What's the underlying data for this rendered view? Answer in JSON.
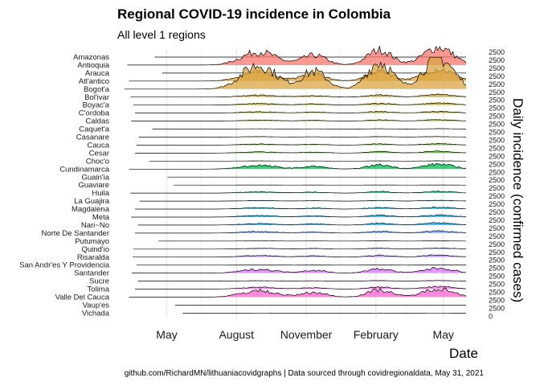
{
  "chart_data": {
    "type": "area",
    "subtype": "ridgeline",
    "title": "Regional COVID-19 incidence in Colombia",
    "subtitle": "All level 1 regions",
    "xlabel": "Date",
    "ylabel": "Daily incidence (confirmed cases)",
    "caption": "github.com/RichardMN/lithuaniacovidgraphs | Data sourced through covidregionaldata, May 31, 2021",
    "x_ticks": [
      "May",
      "August",
      "November",
      "February",
      "May"
    ],
    "x_range": [
      "2020-03-01",
      "2021-05-31"
    ],
    "y_ticks_per_row": [
      "2500",
      "0"
    ],
    "y_range_per_row": [
      0,
      2500
    ],
    "grid": true,
    "legend": "none",
    "colors": {
      "low": "#f8766d",
      "mid_warm": "#d89000",
      "mid": "#39b600",
      "cool": "#00b0f6",
      "high": "#e76bf3",
      "line": "#000000",
      "grid": "#ebebeb"
    },
    "series": [
      {
        "name": "Amazonas",
        "start": "2020-04-15",
        "peak": 10,
        "color": "#f8766d"
      },
      {
        "name": "Antioquia",
        "start": "2020-03-10",
        "peak": 2500,
        "color": "#f8766d"
      },
      {
        "name": "Arauca",
        "start": "2020-04-25",
        "peak": 25,
        "color": "#f28e2b"
      },
      {
        "name": "Atl'antico",
        "start": "2020-03-12",
        "peak": 1700,
        "color": "#e6a33a"
      },
      {
        "name": "Bogot'a",
        "start": "2020-03-06",
        "peak": 4500,
        "color": "#d9a441"
      },
      {
        "name": "Bol'ivar",
        "start": "2020-03-14",
        "peak": 350,
        "color": "#c8a32a"
      },
      {
        "name": "Boyac'a",
        "start": "2020-03-18",
        "peak": 300,
        "color": "#b5a800"
      },
      {
        "name": "C'ordoba",
        "start": "2020-03-20",
        "peak": 250,
        "color": "#a3a500"
      },
      {
        "name": "Caldas",
        "start": "2020-03-15",
        "peak": 200,
        "color": "#8fac00"
      },
      {
        "name": "Caquet'a",
        "start": "2020-04-12",
        "peak": 60,
        "color": "#7cae00"
      },
      {
        "name": "Casanare",
        "start": "2020-03-25",
        "peak": 80,
        "color": "#64b200"
      },
      {
        "name": "Cauca",
        "start": "2020-03-22",
        "peak": 200,
        "color": "#4cb400"
      },
      {
        "name": "Cesar",
        "start": "2020-03-20",
        "peak": 250,
        "color": "#39b600"
      },
      {
        "name": "Choc'o",
        "start": "2020-04-08",
        "peak": 40,
        "color": "#00b81f"
      },
      {
        "name": "Cundinamarca",
        "start": "2020-03-12",
        "peak": 700,
        "color": "#00bb4e"
      },
      {
        "name": "Guain'ia",
        "start": "2020-05-02",
        "peak": 10,
        "color": "#00be6c"
      },
      {
        "name": "Guaviare",
        "start": "2020-05-10",
        "peak": 15,
        "color": "#00bf7d"
      },
      {
        "name": "Huila",
        "start": "2020-03-14",
        "peak": 250,
        "color": "#00c08b"
      },
      {
        "name": "La Guajira",
        "start": "2020-03-26",
        "peak": 100,
        "color": "#00bfc4"
      },
      {
        "name": "Magdalena",
        "start": "2020-03-20",
        "peak": 250,
        "color": "#00b9e3"
      },
      {
        "name": "Meta",
        "start": "2020-03-15",
        "peak": 300,
        "color": "#00b0f6"
      },
      {
        "name": "Nari~No",
        "start": "2020-03-24",
        "peak": 300,
        "color": "#00a9ff"
      },
      {
        "name": "Norte De Santander",
        "start": "2020-03-20",
        "peak": 300,
        "color": "#619cff"
      },
      {
        "name": "Putumayo",
        "start": "2020-04-20",
        "peak": 40,
        "color": "#7f95ff"
      },
      {
        "name": "Quind'io",
        "start": "2020-03-18",
        "peak": 150,
        "color": "#9590ff"
      },
      {
        "name": "Risaralda",
        "start": "2020-03-17",
        "peak": 300,
        "color": "#b983ff"
      },
      {
        "name": "San Andr'es Y Providencia",
        "start": "2020-03-22",
        "peak": 30,
        "color": "#c77cff"
      },
      {
        "name": "Santander",
        "start": "2020-03-16",
        "peak": 700,
        "color": "#dc71fa"
      },
      {
        "name": "Sucre",
        "start": "2020-03-24",
        "peak": 80,
        "color": "#e76bf3"
      },
      {
        "name": "Tolima",
        "start": "2020-03-20",
        "peak": 350,
        "color": "#f365e6"
      },
      {
        "name": "Valle Del Cauca",
        "start": "2020-03-12",
        "peak": 1200,
        "color": "#fd61d1"
      },
      {
        "name": "Vaup'es",
        "start": "2020-05-12",
        "peak": 10,
        "color": "#ff64b0"
      },
      {
        "name": "Vichada",
        "start": "2020-05-22",
        "peak": 8,
        "color": "#ff6c91"
      }
    ]
  }
}
